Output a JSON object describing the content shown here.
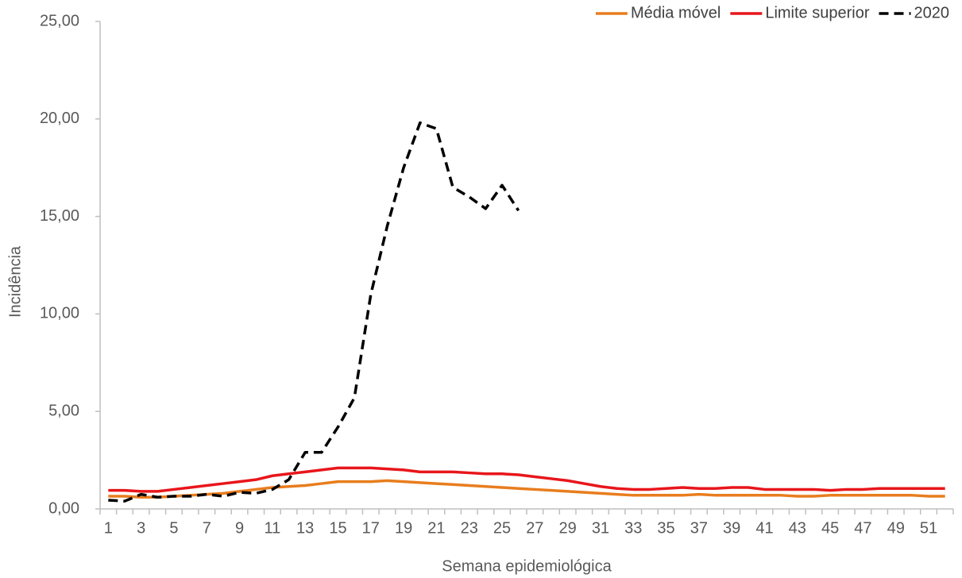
{
  "chart_data": {
    "type": "line",
    "y_label": "Incidência",
    "x_label": "Semana epidemiológica",
    "categories": [
      1,
      null,
      3,
      null,
      5,
      null,
      7,
      null,
      9,
      null,
      11,
      null,
      13,
      null,
      15,
      null,
      17,
      null,
      19,
      null,
      21,
      null,
      23,
      null,
      25,
      null,
      27,
      null,
      29,
      null,
      31,
      null,
      33,
      null,
      35,
      null,
      37,
      null,
      39,
      null,
      41,
      null,
      43,
      null,
      45,
      null,
      47,
      null,
      49,
      null,
      51,
      null
    ],
    "series": [
      {
        "name": "Média móvel",
        "color": "#e87d1e",
        "linestyle": "solid",
        "values": [
          0.65,
          0.65,
          0.6,
          0.6,
          0.65,
          0.7,
          0.75,
          0.8,
          0.9,
          1.0,
          1.1,
          1.15,
          1.2,
          1.3,
          1.4,
          1.4,
          1.4,
          1.45,
          1.4,
          1.35,
          1.3,
          1.25,
          1.2,
          1.15,
          1.1,
          1.05,
          1.0,
          0.95,
          0.9,
          0.85,
          0.8,
          0.75,
          0.7,
          0.7,
          0.7,
          0.7,
          0.75,
          0.7,
          0.7,
          0.7,
          0.7,
          0.7,
          0.65,
          0.65,
          0.7,
          0.7,
          0.7,
          0.7,
          0.7,
          0.7,
          0.65,
          0.65
        ]
      },
      {
        "name": "Limite superior",
        "color": "#e8161b",
        "linestyle": "solid",
        "values": [
          0.95,
          0.95,
          0.9,
          0.9,
          1.0,
          1.1,
          1.2,
          1.3,
          1.4,
          1.5,
          1.7,
          1.8,
          1.9,
          2.0,
          2.1,
          2.1,
          2.1,
          2.05,
          2.0,
          1.9,
          1.9,
          1.9,
          1.85,
          1.8,
          1.8,
          1.75,
          1.65,
          1.55,
          1.45,
          1.3,
          1.15,
          1.05,
          1.0,
          1.0,
          1.05,
          1.1,
          1.05,
          1.05,
          1.1,
          1.1,
          1.0,
          1.0,
          1.0,
          1.0,
          0.95,
          1.0,
          1.0,
          1.05,
          1.05,
          1.05,
          1.05,
          1.05
        ]
      },
      {
        "name": "2020",
        "color": "#000000",
        "linestyle": "dashed",
        "values": [
          0.45,
          0.4,
          0.75,
          0.6,
          0.65,
          0.65,
          0.75,
          0.65,
          0.85,
          0.8,
          1.0,
          1.5,
          2.9,
          2.9,
          4.2,
          5.7,
          11.0,
          14.5,
          17.5,
          19.8,
          19.5,
          16.5,
          16.0,
          15.4,
          16.6,
          15.3,
          null,
          null,
          null,
          null,
          null,
          null,
          null,
          null,
          null,
          null,
          null,
          null,
          null,
          null,
          null,
          null,
          null,
          null,
          null,
          null,
          null,
          null,
          null,
          null,
          null,
          null
        ]
      }
    ],
    "ylim": [
      0,
      25
    ],
    "yticks": [
      {
        "value": 0,
        "label": "0,00"
      },
      {
        "value": 5,
        "label": "5,00"
      },
      {
        "value": 10,
        "label": "10,00"
      },
      {
        "value": 15,
        "label": "15,00"
      },
      {
        "value": 20,
        "label": "20,00"
      },
      {
        "value": 25,
        "label": "25,00"
      }
    ],
    "grid": false,
    "legend": "top-right"
  }
}
